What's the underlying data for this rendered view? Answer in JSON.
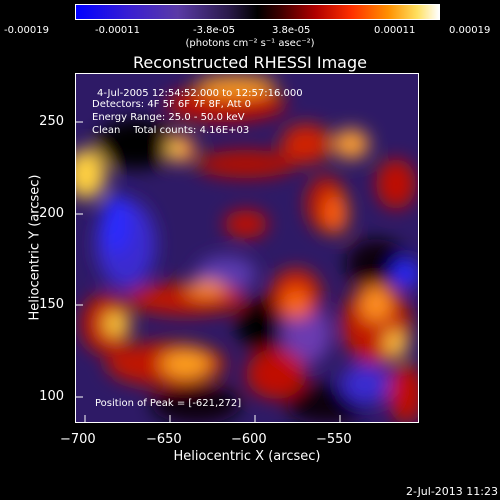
{
  "colorbar": {
    "ticks": [
      "-0.00019",
      "-0.00011",
      "-3.8e-05",
      "3.8e-05",
      "0.00011",
      "0.00019"
    ],
    "unit": "(photons cm⁻² s⁻¹ asec⁻²)"
  },
  "title": "Reconstructed RHESSI Image",
  "annotations": {
    "time": "4-Jul-2005 12:54:52.000 to 12:57:16.000",
    "detectors": "Detectors: 4F 5F 6F 7F 8F, Att 0",
    "energy": "Energy Range: 25.0 - 50.0 keV",
    "clean": "Clean    Total counts: 4.16E+03",
    "peak": "Position of Peak = [-621,272]"
  },
  "axes": {
    "xlabel": "Heliocentric X (arcsec)",
    "ylabel": "Heliocentric Y (arcsec)",
    "xticks": [
      "−700",
      "−650",
      "−600",
      "−550"
    ],
    "yticks": [
      "250",
      "200",
      "150",
      "100"
    ]
  },
  "footer": "2-Jul-2013 11:23"
}
